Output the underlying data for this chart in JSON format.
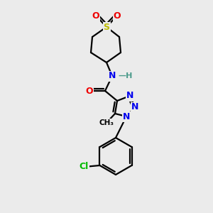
{
  "bg_color": "#ebebeb",
  "atom_colors": {
    "C": "#000000",
    "H": "#4a9a8a",
    "N": "#0000ee",
    "O": "#ee0000",
    "S": "#bbbb00",
    "Cl": "#00bb00"
  },
  "bond_color": "#000000",
  "bond_width": 1.6,
  "font_size_atom": 9,
  "font_size_small": 8
}
